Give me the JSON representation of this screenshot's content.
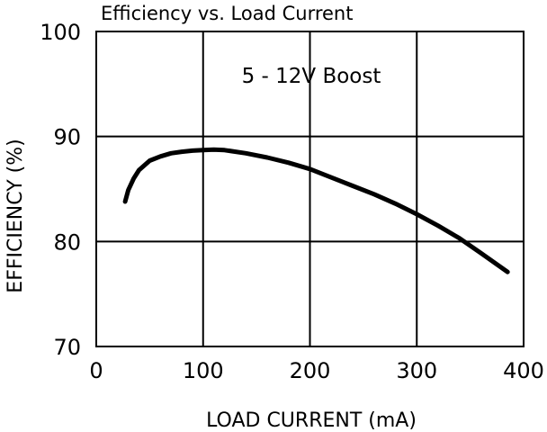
{
  "chart_data": {
    "type": "line",
    "title": "Efficiency vs. Load Current",
    "xlabel": "LOAD CURRENT (mA)",
    "ylabel": "EFFICIENCY (%)",
    "annotation": "5 - 12V Boost",
    "xlim": [
      0,
      400
    ],
    "ylim": [
      70,
      100
    ],
    "x_ticks": [
      0,
      100,
      200,
      300,
      400
    ],
    "y_ticks": [
      70,
      80,
      90,
      100
    ],
    "grid": true,
    "legend": "none",
    "line_color": "#000000",
    "series": [
      {
        "x": [
          27,
          30,
          35,
          40,
          50,
          60,
          70,
          80,
          90,
          100,
          110,
          120,
          140,
          160,
          180,
          200,
          220,
          240,
          260,
          280,
          300,
          320,
          340,
          360,
          385
        ],
        "y": [
          83.8,
          84.9,
          86.0,
          86.8,
          87.7,
          88.1,
          88.4,
          88.55,
          88.65,
          88.7,
          88.75,
          88.7,
          88.4,
          88.0,
          87.5,
          86.9,
          86.1,
          85.3,
          84.5,
          83.6,
          82.6,
          81.5,
          80.3,
          78.9,
          77.1
        ]
      }
    ]
  }
}
